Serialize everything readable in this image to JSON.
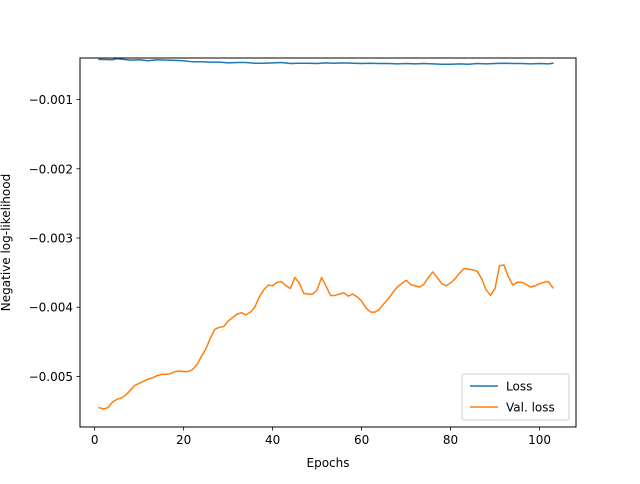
{
  "chart_data": {
    "type": "line",
    "title": "",
    "xlabel": "Epochs",
    "ylabel": "Negative log-likelihood",
    "xlim": [
      -3.3,
      108.2
    ],
    "ylim": [
      -0.00573,
      -0.0004
    ],
    "xticks": [
      0,
      20,
      40,
      60,
      80,
      100
    ],
    "yticks": [
      -0.005,
      -0.004,
      -0.003,
      -0.002,
      -0.001
    ],
    "xtick_labels": [
      "0",
      "20",
      "40",
      "60",
      "80",
      "100"
    ],
    "ytick_labels": [
      "−0.005",
      "−0.004",
      "−0.003",
      "−0.002",
      "−0.001"
    ],
    "grid": false,
    "legend": {
      "position": "lower-right",
      "entries": [
        "Loss",
        "Val. loss"
      ]
    },
    "series": [
      {
        "name": "Loss",
        "color": "#1f77b4",
        "x": [
          1,
          4,
          5,
          8,
          10,
          12,
          14,
          16,
          18,
          20,
          22,
          24,
          26,
          28,
          30,
          32,
          34,
          36,
          38,
          40,
          42,
          44,
          46,
          48,
          50,
          52,
          54,
          56,
          58,
          60,
          62,
          64,
          66,
          68,
          70,
          72,
          74,
          76,
          78,
          80,
          82,
          84,
          86,
          88,
          90,
          92,
          94,
          96,
          98,
          100,
          102,
          103
        ],
        "y": [
          -0.00042,
          -0.000425,
          -0.00041,
          -0.00043,
          -0.000425,
          -0.00044,
          -0.000425,
          -0.00043,
          -0.000435,
          -0.00044,
          -0.000455,
          -0.000455,
          -0.00046,
          -0.00046,
          -0.00047,
          -0.000465,
          -0.000465,
          -0.000475,
          -0.000475,
          -0.00047,
          -0.000465,
          -0.00048,
          -0.000475,
          -0.000475,
          -0.00048,
          -0.00047,
          -0.000475,
          -0.00047,
          -0.000475,
          -0.00048,
          -0.000475,
          -0.00048,
          -0.00048,
          -0.000485,
          -0.00048,
          -0.000485,
          -0.00048,
          -0.000485,
          -0.00049,
          -0.00049,
          -0.000485,
          -0.00049,
          -0.00048,
          -0.000485,
          -0.00048,
          -0.000475,
          -0.00048,
          -0.00048,
          -0.000485,
          -0.00048,
          -0.000485,
          -0.000475
        ]
      },
      {
        "name": "Val. loss",
        "color": "#ff7f0e",
        "x": [
          1,
          2,
          3,
          4,
          5,
          6,
          7,
          8,
          9,
          10,
          11,
          12,
          13,
          14,
          15,
          16,
          17,
          18,
          19,
          20,
          21,
          22,
          23,
          24,
          25,
          26,
          27,
          28,
          29,
          30,
          31,
          32,
          33,
          34,
          35,
          36,
          37,
          38,
          39,
          40,
          41,
          42,
          43,
          44,
          45,
          46,
          47,
          48,
          49,
          50,
          51,
          52,
          53,
          54,
          55,
          56,
          57,
          58,
          59,
          60,
          61,
          62,
          63,
          64,
          65,
          66,
          67,
          68,
          69,
          70,
          71,
          72,
          73,
          74,
          75,
          76,
          77,
          78,
          79,
          80,
          81,
          82,
          83,
          84,
          85,
          86,
          87,
          88,
          89,
          90,
          91,
          92,
          93,
          94,
          95,
          96,
          97,
          98,
          99,
          100,
          101,
          102,
          103
        ],
        "y": [
          -0.00545,
          -0.00547,
          -0.00545,
          -0.00537,
          -0.00533,
          -0.00531,
          -0.00527,
          -0.0052,
          -0.00513,
          -0.0051,
          -0.00507,
          -0.00504,
          -0.00502,
          -0.00499,
          -0.00497,
          -0.00497,
          -0.00496,
          -0.00493,
          -0.00492,
          -0.00493,
          -0.00493,
          -0.0049,
          -0.00483,
          -0.00471,
          -0.0046,
          -0.00445,
          -0.00432,
          -0.00429,
          -0.00428,
          -0.0042,
          -0.00415,
          -0.0041,
          -0.00408,
          -0.00411,
          -0.00407,
          -0.004,
          -0.00385,
          -0.00375,
          -0.00368,
          -0.00369,
          -0.00364,
          -0.00363,
          -0.00369,
          -0.00373,
          -0.00357,
          -0.00365,
          -0.0038,
          -0.00381,
          -0.00381,
          -0.00375,
          -0.00357,
          -0.00369,
          -0.00383,
          -0.00383,
          -0.00381,
          -0.00379,
          -0.00384,
          -0.00381,
          -0.00385,
          -0.00391,
          -0.00401,
          -0.00407,
          -0.00407,
          -0.00403,
          -0.00395,
          -0.00388,
          -0.00379,
          -0.00371,
          -0.00366,
          -0.00361,
          -0.00367,
          -0.00369,
          -0.00371,
          -0.00367,
          -0.00357,
          -0.00349,
          -0.00357,
          -0.00366,
          -0.00369,
          -0.00365,
          -0.00359,
          -0.00351,
          -0.00344,
          -0.00345,
          -0.00346,
          -0.00348,
          -0.00359,
          -0.00375,
          -0.00383,
          -0.00373,
          -0.0034,
          -0.00339,
          -0.00356,
          -0.00368,
          -0.00364,
          -0.00364,
          -0.00367,
          -0.00371,
          -0.00369,
          -0.00366,
          -0.00364,
          -0.00363,
          -0.00372
        ]
      }
    ]
  }
}
